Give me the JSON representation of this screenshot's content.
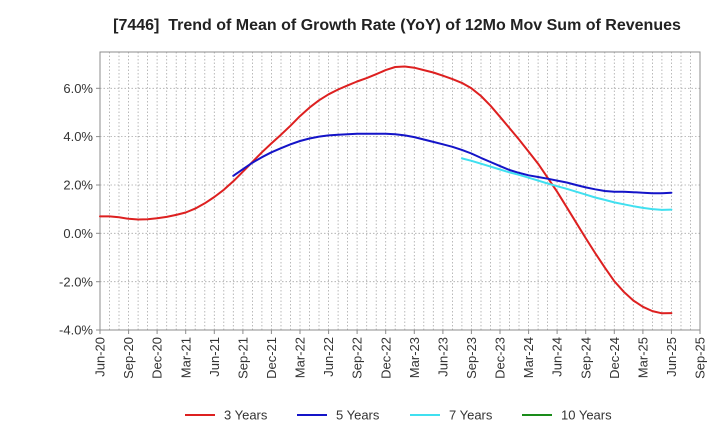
{
  "chart_data": {
    "type": "line",
    "title": "[7446]  Trend of Mean of Growth Rate (YoY) of 12Mo Mov Sum of Revenues",
    "xlabel": "",
    "ylabel": "",
    "grid": true,
    "legend": "bottom",
    "xlim": [
      0,
      63
    ],
    "months_per_tick": 3,
    "x_tick_labels": [
      "Jun-20",
      "Sep-20",
      "Dec-20",
      "Mar-21",
      "Jun-21",
      "Sep-21",
      "Dec-21",
      "Mar-22",
      "Jun-22",
      "Sep-22",
      "Dec-22",
      "Mar-23",
      "Jun-23",
      "Sep-23",
      "Dec-23",
      "Mar-24",
      "Jun-24",
      "Sep-24",
      "Dec-24",
      "Mar-25",
      "Jun-25",
      "Sep-25"
    ],
    "ylim": [
      -4,
      7.5
    ],
    "y_ticks": [
      6,
      4,
      2,
      0,
      -2,
      -4
    ],
    "y_tick_labels": [
      "6.0%",
      "4.0%",
      "2.0%",
      "0.0%",
      "-2.0%",
      "-4.0%"
    ],
    "series": [
      {
        "name": "3 Years",
        "color": "#dd2020",
        "values": [
          0.7,
          0.7,
          0.66,
          0.6,
          0.57,
          0.58,
          0.62,
          0.68,
          0.76,
          0.86,
          1.02,
          1.24,
          1.5,
          1.8,
          2.15,
          2.55,
          2.95,
          3.35,
          3.72,
          4.08,
          4.45,
          4.85,
          5.2,
          5.5,
          5.75,
          5.95,
          6.12,
          6.28,
          6.42,
          6.58,
          6.75,
          6.88,
          6.9,
          6.85,
          6.75,
          6.65,
          6.52,
          6.38,
          6.22,
          6.0,
          5.68,
          5.28,
          4.82,
          4.35,
          3.88,
          3.38,
          2.88,
          2.3,
          1.72,
          1.08,
          0.44,
          -0.2,
          -0.82,
          -1.42,
          -1.98,
          -2.42,
          -2.78,
          -3.04,
          -3.22,
          -3.31,
          -3.3
        ]
      },
      {
        "name": "5 Years",
        "color": "#1414c8",
        "values": [
          null,
          null,
          null,
          null,
          null,
          null,
          null,
          null,
          null,
          null,
          null,
          null,
          null,
          null,
          2.38,
          2.65,
          2.92,
          3.15,
          3.35,
          3.52,
          3.68,
          3.82,
          3.92,
          4.0,
          4.05,
          4.08,
          4.1,
          4.12,
          4.12,
          4.12,
          4.12,
          4.1,
          4.05,
          3.98,
          3.88,
          3.78,
          3.68,
          3.58,
          3.45,
          3.3,
          3.12,
          2.95,
          2.78,
          2.62,
          2.5,
          2.4,
          2.33,
          2.26,
          2.18,
          2.1,
          2.0,
          1.9,
          1.82,
          1.75,
          1.72,
          1.72,
          1.7,
          1.68,
          1.66,
          1.66,
          1.68
        ]
      },
      {
        "name": "7 Years",
        "color": "#40e0f0",
        "values": [
          null,
          null,
          null,
          null,
          null,
          null,
          null,
          null,
          null,
          null,
          null,
          null,
          null,
          null,
          null,
          null,
          null,
          null,
          null,
          null,
          null,
          null,
          null,
          null,
          null,
          null,
          null,
          null,
          null,
          null,
          null,
          null,
          null,
          null,
          null,
          null,
          null,
          null,
          3.1,
          3.0,
          2.88,
          2.76,
          2.64,
          2.52,
          2.42,
          2.3,
          2.18,
          2.06,
          1.95,
          1.84,
          1.72,
          1.6,
          1.48,
          1.38,
          1.28,
          1.2,
          1.12,
          1.05,
          1.0,
          0.97,
          0.98
        ]
      },
      {
        "name": "10 Years",
        "color": "#1a8c1a",
        "values": []
      }
    ]
  }
}
